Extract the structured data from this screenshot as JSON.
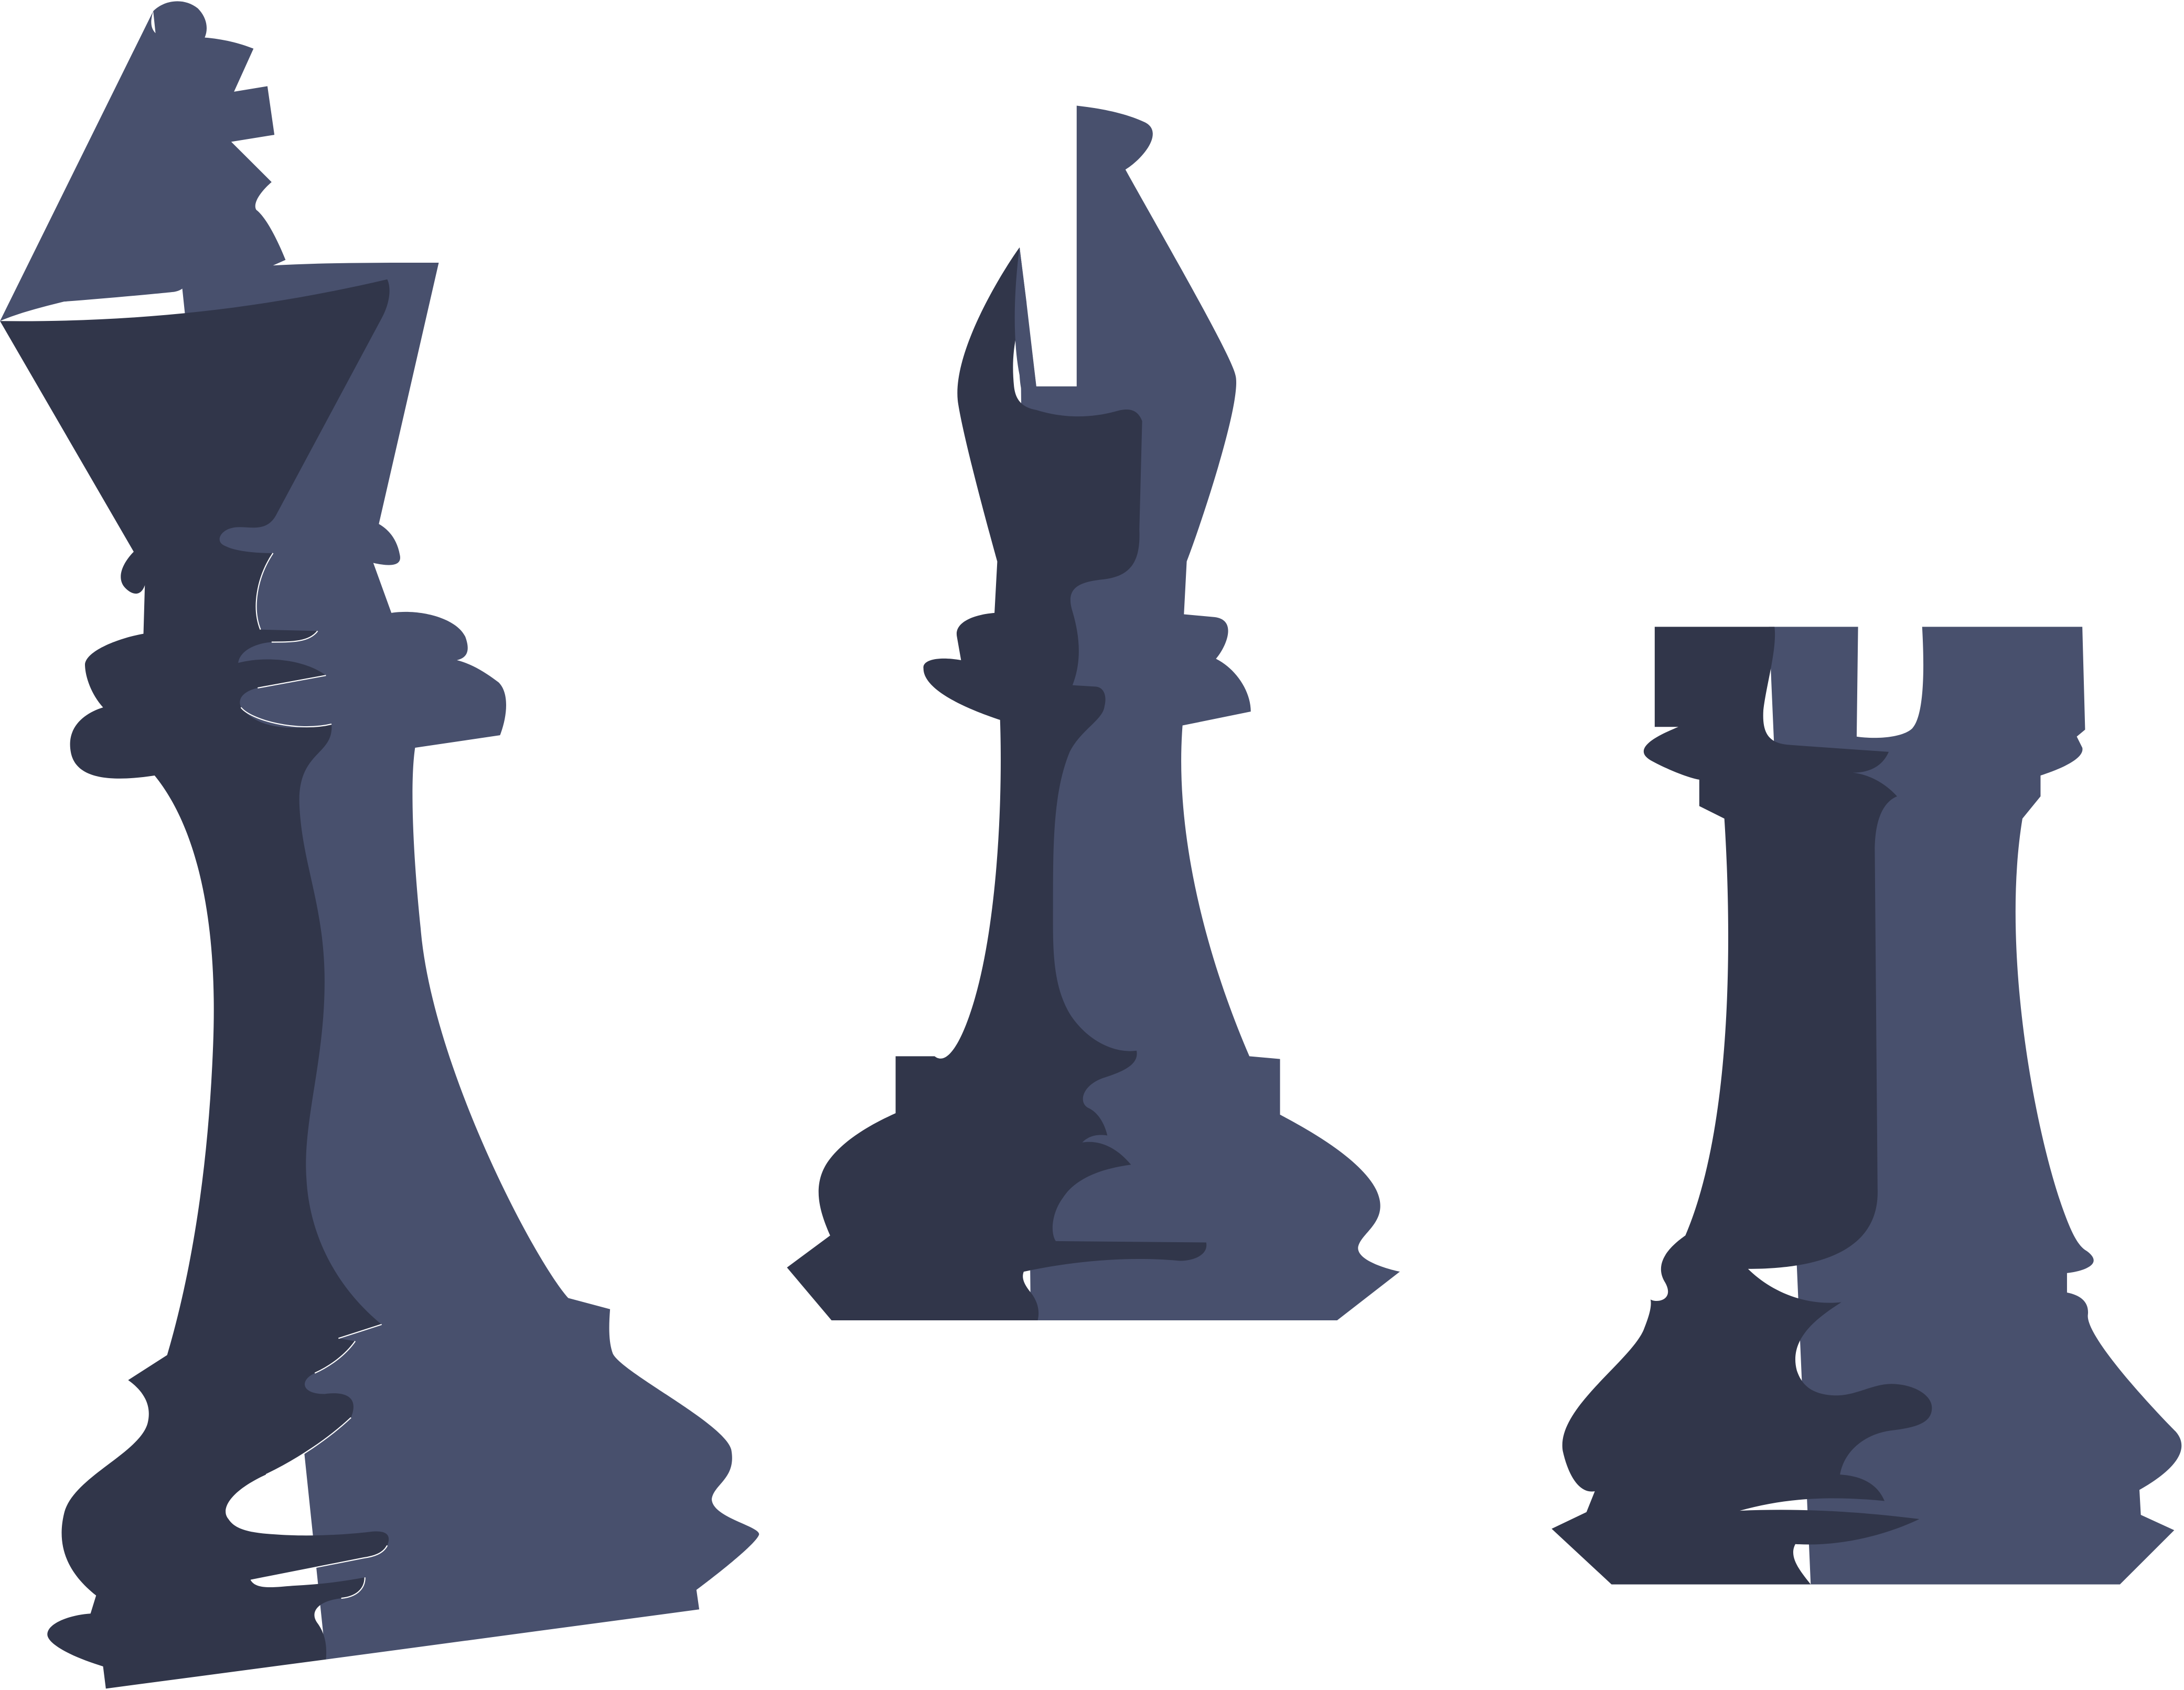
{
  "image": {
    "kind": "illustration",
    "background_color": "#ffffff"
  },
  "palette": {
    "shadow": "#31364a",
    "light": "#48506d"
  },
  "pieces": [
    {
      "name": "king",
      "icon": "chess-king-icon",
      "tilt": "tilted"
    },
    {
      "name": "bishop",
      "icon": "chess-bishop-icon",
      "tilt": "upright"
    },
    {
      "name": "rook",
      "icon": "chess-rook-icon",
      "tilt": "upright"
    }
  ]
}
